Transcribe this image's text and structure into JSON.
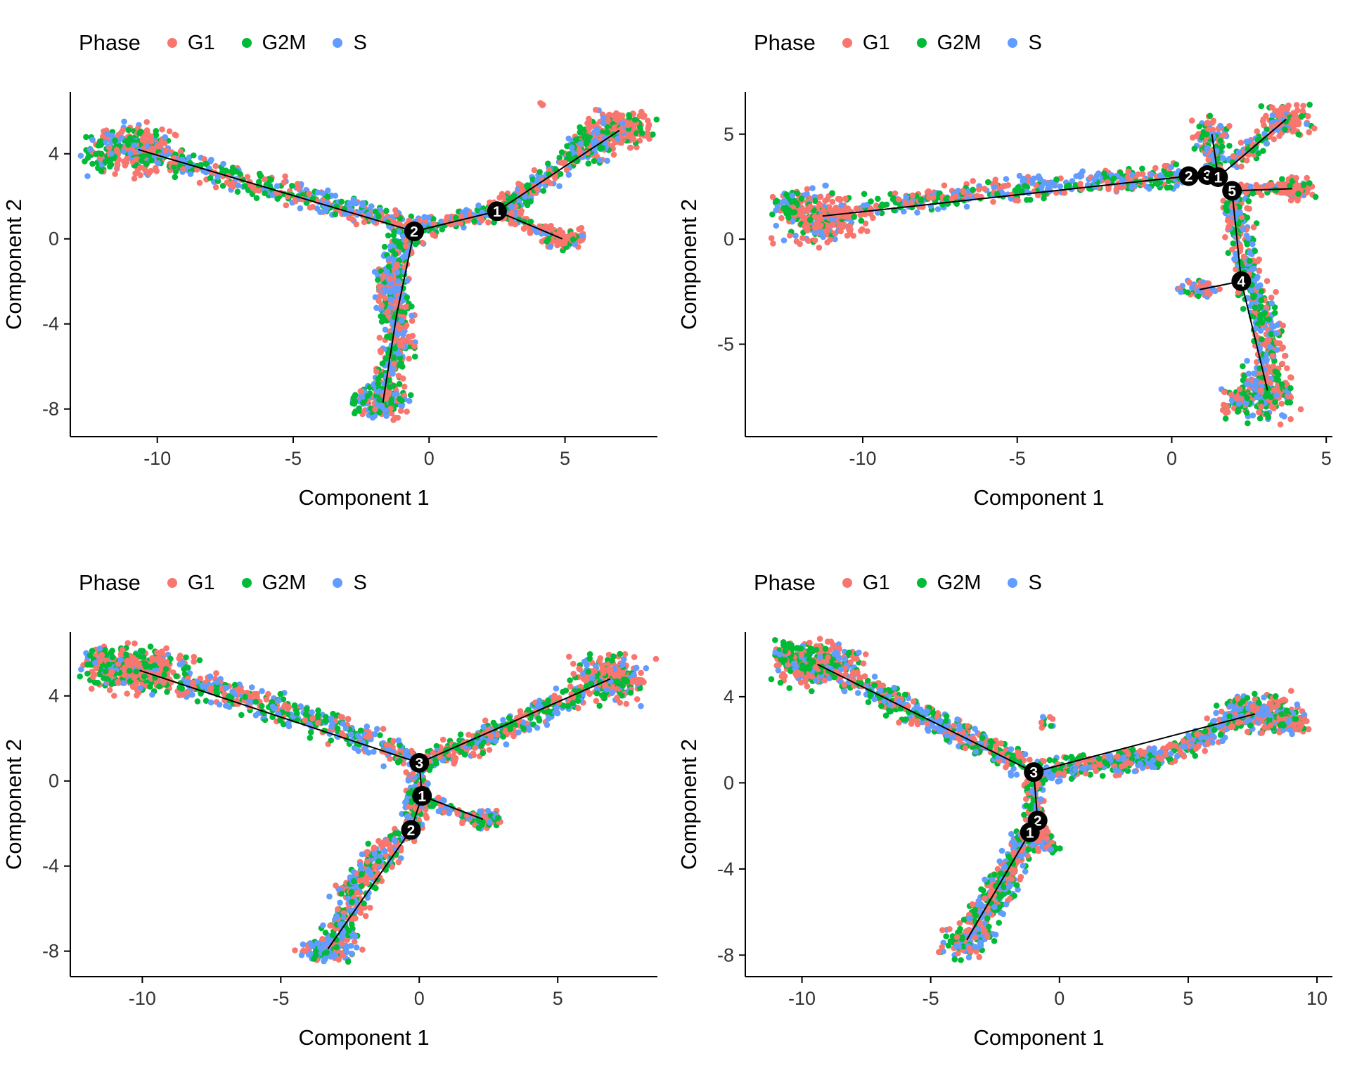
{
  "figure": {
    "legend_title": "Phase",
    "phases": [
      {
        "label": "G1",
        "color": "#F8766D"
      },
      {
        "label": "G2M",
        "color": "#00BA38"
      },
      {
        "label": "S",
        "color": "#619CFF"
      }
    ],
    "axis_color": "#000000",
    "tick_label_color": "#333333",
    "node_color": "#000000",
    "node_text_color": "#ffffff"
  },
  "chart_data": [
    {
      "type": "scatter",
      "id": "top-left-trajectory",
      "xlabel": "Component 1",
      "ylabel": "Component 2",
      "xlim": [
        -13.2,
        8.4
      ],
      "ylim": [
        -9.3,
        6.9
      ],
      "xticks": [
        -10,
        -5,
        0,
        5
      ],
      "yticks": [
        4,
        0,
        -4,
        -8
      ],
      "legend": {
        "title": "Phase",
        "entries": [
          "G1",
          "G2M",
          "S"
        ]
      },
      "seed": 101,
      "clusters": [
        {
          "cx": -10.7,
          "cy": 4.2,
          "rx": 1.5,
          "ry": 1.1,
          "n": 260,
          "w": [
            0.55,
            0.25,
            0.2
          ]
        },
        {
          "cx": -11.9,
          "cy": 4.0,
          "rx": 0.8,
          "ry": 0.8,
          "n": 60,
          "w": [
            0.2,
            0.5,
            0.3
          ]
        },
        {
          "cx": 7.0,
          "cy": 5.1,
          "rx": 1.1,
          "ry": 0.8,
          "n": 230,
          "w": [
            0.65,
            0.2,
            0.15
          ]
        },
        {
          "cx": 5.9,
          "cy": 4.4,
          "rx": 0.8,
          "ry": 0.7,
          "n": 90,
          "w": [
            0.3,
            0.4,
            0.3
          ]
        },
        {
          "cx": 4.9,
          "cy": 0.0,
          "rx": 0.7,
          "ry": 0.45,
          "n": 80,
          "w": [
            0.8,
            0.1,
            0.1
          ]
        },
        {
          "cx": -1.7,
          "cy": -7.7,
          "rx": 1.0,
          "ry": 0.7,
          "n": 150,
          "w": [
            0.3,
            0.35,
            0.35
          ]
        },
        {
          "cx": 4.1,
          "cy": 6.3,
          "rx": 0.2,
          "ry": 0.2,
          "n": 3,
          "w": [
            1.0,
            0.0,
            0.0
          ]
        }
      ],
      "segments": [
        {
          "x1": -9.5,
          "y1": 3.7,
          "x2": -0.7,
          "y2": 0.6,
          "width": 0.55,
          "n": 340,
          "w": [
            0.3,
            0.37,
            0.33
          ]
        },
        {
          "x1": -0.6,
          "y1": 0.45,
          "x2": 2.5,
          "y2": 1.3,
          "width": 0.45,
          "n": 140,
          "w": [
            0.34,
            0.33,
            0.33
          ]
        },
        {
          "x1": 2.6,
          "y1": 1.4,
          "x2": 6.1,
          "y2": 4.7,
          "via": [
            4.3,
            2.6
          ],
          "width": 0.5,
          "n": 220,
          "w": [
            0.34,
            0.33,
            0.33
          ]
        },
        {
          "x1": 2.7,
          "y1": 1.1,
          "x2": 4.5,
          "y2": 0.2,
          "width": 0.35,
          "n": 60,
          "w": [
            0.6,
            0.2,
            0.2
          ]
        },
        {
          "x1": -0.7,
          "y1": 0.3,
          "x2": -1.2,
          "y2": -3.6,
          "via": [
            -1.7,
            -1.6
          ],
          "width": 0.6,
          "n": 240,
          "w": [
            0.34,
            0.33,
            0.33
          ]
        },
        {
          "x1": -1.2,
          "y1": -3.6,
          "x2": -1.8,
          "y2": -7.2,
          "via": [
            -0.9,
            -5.4
          ],
          "width": 0.55,
          "n": 200,
          "w": [
            0.34,
            0.33,
            0.33
          ]
        }
      ],
      "tree_edges": [
        [
          -10.7,
          4.2,
          -0.55,
          0.35
        ],
        [
          -0.55,
          0.35,
          2.5,
          1.3
        ],
        [
          2.5,
          1.3,
          7.0,
          5.1
        ],
        [
          2.5,
          1.3,
          4.9,
          0.0
        ],
        [
          -0.55,
          0.35,
          -1.2,
          -3.6
        ],
        [
          -1.2,
          -3.6,
          -1.7,
          -7.7
        ]
      ],
      "branch_nodes": [
        {
          "label": "1",
          "x": 2.5,
          "y": 1.3
        },
        {
          "label": "2",
          "x": -0.55,
          "y": 0.35
        }
      ]
    },
    {
      "type": "scatter",
      "id": "top-right-trajectory",
      "xlabel": "Component 1",
      "ylabel": "Component 2",
      "xlim": [
        -13.8,
        5.2
      ],
      "ylim": [
        -9.4,
        7.0
      ],
      "xticks": [
        -10,
        -5,
        0,
        5
      ],
      "yticks": [
        5,
        0,
        -5
      ],
      "legend": {
        "title": "Phase",
        "entries": [
          "G1",
          "G2M",
          "S"
        ]
      },
      "seed": 202,
      "clusters": [
        {
          "cx": -11.3,
          "cy": 1.1,
          "rx": 1.2,
          "ry": 1.1,
          "n": 300,
          "w": [
            0.65,
            0.15,
            0.2
          ]
        },
        {
          "cx": -12.4,
          "cy": 1.6,
          "rx": 0.6,
          "ry": 0.6,
          "n": 50,
          "w": [
            0.2,
            0.5,
            0.3
          ]
        },
        {
          "cx": 1.3,
          "cy": 5.0,
          "rx": 0.5,
          "ry": 0.8,
          "n": 80,
          "w": [
            0.3,
            0.4,
            0.3
          ]
        },
        {
          "cx": 3.7,
          "cy": 5.7,
          "rx": 0.7,
          "ry": 0.7,
          "n": 130,
          "w": [
            0.7,
            0.15,
            0.15
          ]
        },
        {
          "cx": 3.9,
          "cy": 2.4,
          "rx": 0.6,
          "ry": 0.45,
          "n": 90,
          "w": [
            0.75,
            0.12,
            0.13
          ]
        },
        {
          "cx": 3.1,
          "cy": -7.2,
          "rx": 0.8,
          "ry": 1.2,
          "n": 200,
          "w": [
            0.35,
            0.35,
            0.3
          ]
        },
        {
          "cx": 2.2,
          "cy": -7.8,
          "rx": 0.5,
          "ry": 0.7,
          "n": 60,
          "w": [
            0.3,
            0.4,
            0.3
          ]
        },
        {
          "cx": 0.9,
          "cy": -2.4,
          "rx": 0.55,
          "ry": 0.35,
          "n": 55,
          "w": [
            0.35,
            0.35,
            0.3
          ]
        }
      ],
      "segments": [
        {
          "x1": -10.0,
          "y1": 1.5,
          "x2": 0.4,
          "y2": 3.0,
          "via": [
            -4.5,
            2.6
          ],
          "width": 0.5,
          "n": 400,
          "w": [
            0.3,
            0.35,
            0.35
          ]
        },
        {
          "x1": 1.35,
          "y1": 3.3,
          "x2": 1.3,
          "y2": 4.4,
          "width": 0.35,
          "n": 50,
          "w": [
            0.34,
            0.33,
            0.33
          ]
        },
        {
          "x1": 2.1,
          "y1": 2.35,
          "x2": 3.4,
          "y2": 2.4,
          "width": 0.3,
          "n": 40,
          "w": [
            0.6,
            0.2,
            0.2
          ]
        },
        {
          "x1": 2.0,
          "y1": 1.9,
          "x2": 2.5,
          "y2": -1.9,
          "width": 0.45,
          "n": 170,
          "w": [
            0.34,
            0.33,
            0.33
          ]
        },
        {
          "x1": 2.5,
          "y1": -2.1,
          "x2": 3.1,
          "y2": -5.9,
          "via": [
            3.4,
            -4.0
          ],
          "width": 0.5,
          "n": 190,
          "w": [
            0.34,
            0.33,
            0.33
          ]
        },
        {
          "x1": 2.0,
          "y1": 3.5,
          "x2": 3.1,
          "y2": 5.1,
          "width": 0.4,
          "n": 60,
          "w": [
            0.5,
            0.25,
            0.25
          ]
        }
      ],
      "tree_edges": [
        [
          -11.3,
          1.1,
          0.55,
          3.0
        ],
        [
          0.55,
          3.0,
          1.15,
          3.05
        ],
        [
          1.15,
          3.05,
          1.5,
          2.95
        ],
        [
          1.5,
          2.95,
          3.7,
          5.7
        ],
        [
          1.5,
          2.95,
          1.3,
          5.0
        ],
        [
          1.5,
          2.95,
          1.95,
          2.3
        ],
        [
          1.95,
          2.3,
          3.9,
          2.4
        ],
        [
          1.95,
          2.3,
          2.25,
          -2.0
        ],
        [
          2.25,
          -2.0,
          0.9,
          -2.4
        ],
        [
          2.25,
          -2.0,
          3.1,
          -7.2
        ]
      ],
      "branch_nodes": [
        {
          "label": "2",
          "x": 0.55,
          "y": 3.0
        },
        {
          "label": "3",
          "x": 1.15,
          "y": 3.05
        },
        {
          "label": "1",
          "x": 1.5,
          "y": 2.95
        },
        {
          "label": "5",
          "x": 1.95,
          "y": 2.3
        },
        {
          "label": "4",
          "x": 2.25,
          "y": -2.0
        }
      ]
    },
    {
      "type": "scatter",
      "id": "bottom-left-trajectory",
      "xlabel": "Component 1",
      "ylabel": "Component 2",
      "xlim": [
        -12.6,
        8.6
      ],
      "ylim": [
        -9.2,
        7.0
      ],
      "xticks": [
        -10,
        -5,
        0,
        5
      ],
      "yticks": [
        4,
        0,
        -4,
        -8
      ],
      "legend": {
        "title": "Phase",
        "entries": [
          "G1",
          "G2M",
          "S"
        ]
      },
      "seed": 303,
      "clusters": [
        {
          "cx": -10.1,
          "cy": 5.2,
          "rx": 1.6,
          "ry": 1.0,
          "n": 320,
          "w": [
            0.55,
            0.3,
            0.15
          ]
        },
        {
          "cx": -11.3,
          "cy": 5.6,
          "rx": 0.8,
          "ry": 0.7,
          "n": 70,
          "w": [
            0.25,
            0.55,
            0.2
          ]
        },
        {
          "cx": 6.9,
          "cy": 4.8,
          "rx": 1.2,
          "ry": 1.0,
          "n": 260,
          "w": [
            0.55,
            0.25,
            0.2
          ]
        },
        {
          "cx": 2.3,
          "cy": -1.8,
          "rx": 0.6,
          "ry": 0.4,
          "n": 70,
          "w": [
            0.5,
            0.25,
            0.25
          ]
        },
        {
          "cx": -3.3,
          "cy": -7.9,
          "rx": 0.9,
          "ry": 0.6,
          "n": 130,
          "w": [
            0.3,
            0.3,
            0.4
          ]
        }
      ],
      "segments": [
        {
          "x1": -8.6,
          "y1": 4.7,
          "x2": -0.3,
          "y2": 1.1,
          "via": [
            -4.5,
            3.4
          ],
          "width": 0.6,
          "n": 400,
          "w": [
            0.32,
            0.35,
            0.33
          ]
        },
        {
          "x1": 0.3,
          "y1": 1.0,
          "x2": 5.9,
          "y2": 4.2,
          "via": [
            3.0,
            2.2
          ],
          "width": 0.55,
          "n": 340,
          "w": [
            0.34,
            0.33,
            0.33
          ]
        },
        {
          "x1": 0.0,
          "y1": 0.8,
          "x2": -0.2,
          "y2": -2.2,
          "width": 0.45,
          "n": 130,
          "w": [
            0.34,
            0.33,
            0.33
          ]
        },
        {
          "x1": -0.4,
          "y1": -2.4,
          "x2": -2.9,
          "y2": -7.3,
          "via": [
            -2.5,
            -4.6
          ],
          "width": 0.6,
          "n": 280,
          "w": [
            0.34,
            0.33,
            0.33
          ]
        },
        {
          "x1": 0.3,
          "y1": -0.9,
          "x2": 1.8,
          "y2": -1.7,
          "width": 0.3,
          "n": 50,
          "w": [
            0.4,
            0.3,
            0.3
          ]
        }
      ],
      "tree_edges": [
        [
          -10.1,
          5.2,
          0.0,
          0.85
        ],
        [
          0.0,
          0.85,
          6.9,
          4.8
        ],
        [
          0.0,
          0.85,
          0.1,
          -0.7
        ],
        [
          0.1,
          -0.7,
          2.3,
          -1.8
        ],
        [
          0.1,
          -0.7,
          -0.3,
          -2.3
        ],
        [
          -0.3,
          -2.3,
          -3.3,
          -7.9
        ]
      ],
      "branch_nodes": [
        {
          "label": "3",
          "x": 0.0,
          "y": 0.85
        },
        {
          "label": "1",
          "x": 0.1,
          "y": -0.7
        },
        {
          "label": "2",
          "x": -0.3,
          "y": -2.3
        }
      ]
    },
    {
      "type": "scatter",
      "id": "bottom-right-trajectory",
      "xlabel": "Component 1",
      "ylabel": "Component 2",
      "xlim": [
        -12.2,
        10.6
      ],
      "ylim": [
        -9.0,
        7.0
      ],
      "xticks": [
        -10,
        -5,
        0,
        5,
        10
      ],
      "yticks": [
        4,
        0,
        -4,
        -8
      ],
      "legend": {
        "title": "Phase",
        "entries": [
          "G1",
          "G2M",
          "S"
        ]
      },
      "seed": 404,
      "clusters": [
        {
          "cx": -9.4,
          "cy": 5.5,
          "rx": 1.4,
          "ry": 0.9,
          "n": 300,
          "w": [
            0.5,
            0.35,
            0.15
          ]
        },
        {
          "cx": -10.6,
          "cy": 5.9,
          "rx": 0.7,
          "ry": 0.6,
          "n": 60,
          "w": [
            0.25,
            0.6,
            0.15
          ]
        },
        {
          "cx": 7.6,
          "cy": 3.2,
          "rx": 1.4,
          "ry": 0.8,
          "n": 240,
          "w": [
            0.5,
            0.3,
            0.2
          ]
        },
        {
          "cx": 9.0,
          "cy": 2.8,
          "rx": 0.6,
          "ry": 0.5,
          "n": 60,
          "w": [
            0.6,
            0.2,
            0.2
          ]
        },
        {
          "cx": -3.6,
          "cy": -7.3,
          "rx": 0.9,
          "ry": 0.8,
          "n": 140,
          "w": [
            0.35,
            0.35,
            0.3
          ]
        },
        {
          "cx": -0.5,
          "cy": 2.8,
          "rx": 0.4,
          "ry": 0.3,
          "n": 10,
          "w": [
            0.5,
            0.3,
            0.2
          ]
        }
      ],
      "segments": [
        {
          "x1": -8.2,
          "y1": 4.9,
          "x2": -1.3,
          "y2": 0.8,
          "via": [
            -4.6,
            2.6
          ],
          "width": 0.55,
          "n": 380,
          "w": [
            0.32,
            0.35,
            0.33
          ]
        },
        {
          "x1": -0.8,
          "y1": 0.5,
          "x2": 4.6,
          "y2": 1.4,
          "via": [
            1.8,
            0.9
          ],
          "width": 0.5,
          "n": 300,
          "w": [
            0.34,
            0.33,
            0.33
          ]
        },
        {
          "x1": 4.6,
          "y1": 1.4,
          "x2": 6.6,
          "y2": 2.8,
          "width": 0.5,
          "n": 120,
          "w": [
            0.4,
            0.3,
            0.3
          ]
        },
        {
          "x1": -1.0,
          "y1": 0.3,
          "x2": -1.0,
          "y2": -1.8,
          "width": 0.4,
          "n": 90,
          "w": [
            0.34,
            0.33,
            0.33
          ]
        },
        {
          "x1": -1.2,
          "y1": -2.4,
          "x2": -3.3,
          "y2": -6.7,
          "via": [
            -2.0,
            -4.6
          ],
          "width": 0.6,
          "n": 280,
          "w": [
            0.34,
            0.33,
            0.33
          ]
        },
        {
          "x1": -0.9,
          "y1": -2.0,
          "x2": -0.2,
          "y2": -3.2,
          "width": 0.35,
          "n": 60,
          "w": [
            0.4,
            0.3,
            0.3
          ]
        }
      ],
      "tree_edges": [
        [
          -9.4,
          5.5,
          -1.0,
          0.5
        ],
        [
          -1.0,
          0.5,
          7.6,
          3.2
        ],
        [
          -1.0,
          0.5,
          -0.85,
          -1.75
        ],
        [
          -0.85,
          -1.75,
          -1.15,
          -2.3
        ],
        [
          -1.15,
          -2.3,
          -3.6,
          -7.3
        ]
      ],
      "branch_nodes": [
        {
          "label": "3",
          "x": -1.0,
          "y": 0.5
        },
        {
          "label": "2",
          "x": -0.85,
          "y": -1.75
        },
        {
          "label": "1",
          "x": -1.15,
          "y": -2.3
        }
      ]
    }
  ]
}
